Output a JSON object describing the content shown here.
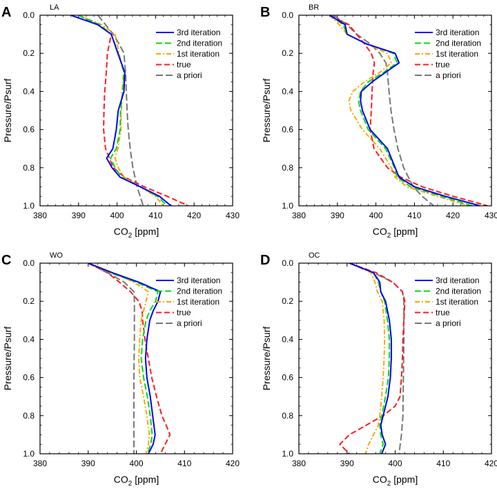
{
  "figure": {
    "background": "#ffffff"
  },
  "series_styles": [
    {
      "key": "iter3",
      "name": "3rd iteration",
      "color": "#0000ff",
      "dash": "",
      "width": 2
    },
    {
      "key": "iter2",
      "name": "2nd iteration",
      "color": "#00dd00",
      "dash": "9 4",
      "width": 2
    },
    {
      "key": "iter1",
      "name": "1st iteration",
      "color": "#ffa500",
      "dash": "7 3 2 3",
      "width": 2
    },
    {
      "key": "true",
      "name": "true",
      "color": "#ff1a1a",
      "dash": "8 4",
      "width": 2
    },
    {
      "key": "apriori",
      "name": "a priori",
      "color": "#777777",
      "dash": "10 4",
      "width": 2
    }
  ],
  "chart_data": [
    {
      "type": "line",
      "panel": "A",
      "title": "LA",
      "xlabel": "CO2 [ppm]",
      "ylabel": "Pressure/Psurf",
      "xlim": [
        380,
        430
      ],
      "ylim": [
        0.0,
        1.0
      ],
      "xticks": [
        "380",
        "390",
        "400",
        "410",
        "420",
        "430"
      ],
      "yticks": [
        "0.0",
        "0.2",
        "0.4",
        "0.6",
        "0.8",
        "1.0"
      ],
      "legend": "top-right",
      "series": [
        {
          "key": "iter3",
          "name": "3rd iteration",
          "y": [
            0.0,
            0.05,
            0.1,
            0.2,
            0.3,
            0.4,
            0.5,
            0.6,
            0.7,
            0.75,
            0.8,
            0.85,
            0.9,
            0.95,
            1.0
          ],
          "x": [
            388,
            395,
            398.5,
            400.2,
            402,
            401.8,
            400.3,
            399.8,
            398.9,
            397.3,
            398.7,
            400.8,
            406,
            411,
            414
          ]
        },
        {
          "key": "iter2",
          "name": "2nd iteration",
          "y": [
            0.0,
            0.05,
            0.1,
            0.2,
            0.3,
            0.4,
            0.5,
            0.6,
            0.7,
            0.75,
            0.8,
            0.85,
            0.9,
            0.95,
            1.0
          ],
          "x": [
            390,
            395.5,
            398.5,
            400.3,
            401.8,
            401.5,
            400.9,
            400.8,
            399.8,
            398.3,
            399.5,
            401.2,
            406,
            410.5,
            413
          ]
        },
        {
          "key": "iter1",
          "name": "1st iteration",
          "y": [
            0.0,
            0.05,
            0.1,
            0.2,
            0.3,
            0.4,
            0.5,
            0.6,
            0.7,
            0.75,
            0.8,
            0.85,
            0.9,
            0.95,
            1.0
          ],
          "x": [
            390,
            396,
            399.5,
            400.5,
            401.7,
            401.3,
            401.1,
            401,
            400.2,
            399.5,
            400.3,
            401.8,
            406,
            410,
            412
          ]
        },
        {
          "key": "true",
          "name": "true",
          "y": [
            0.0,
            0.05,
            0.1,
            0.2,
            0.3,
            0.4,
            0.5,
            0.6,
            0.7,
            0.8,
            0.85,
            0.9,
            0.95,
            1.0
          ],
          "x": [
            390,
            395,
            398.5,
            397.5,
            397.2,
            396.8,
            396.6,
            396.5,
            397,
            399,
            402,
            407,
            413,
            418.5
          ]
        },
        {
          "key": "apriori",
          "name": "a priori",
          "y": [
            0.0,
            0.05,
            0.1,
            0.15,
            0.2,
            0.3,
            0.4,
            0.5,
            0.6,
            0.7,
            0.8,
            0.9,
            1.0
          ],
          "x": [
            395,
            397,
            399,
            400.5,
            401.8,
            402.2,
            402.4,
            402.6,
            402.9,
            403.4,
            404.1,
            405.2,
            406.8
          ]
        }
      ]
    },
    {
      "type": "line",
      "panel": "B",
      "title": "BR",
      "xlabel": "CO2 [ppm]",
      "ylabel": "Pressure/Psurf",
      "xlim": [
        380,
        430
      ],
      "ylim": [
        0.0,
        1.0
      ],
      "xticks": [
        "380",
        "390",
        "400",
        "410",
        "420",
        "430"
      ],
      "yticks": [
        "0.0",
        "0.2",
        "0.4",
        "0.6",
        "0.8",
        "1.0"
      ],
      "legend": "top-right",
      "series": [
        {
          "key": "iter3",
          "name": "3rd iteration",
          "y": [
            0.0,
            0.05,
            0.1,
            0.15,
            0.2,
            0.25,
            0.3,
            0.35,
            0.4,
            0.45,
            0.5,
            0.6,
            0.7,
            0.8,
            0.85,
            0.9,
            0.95,
            1.0
          ],
          "x": [
            388,
            392,
            392.5,
            397.5,
            405,
            406,
            402.5,
            399,
            396.2,
            396,
            396.5,
            398.5,
            403,
            405,
            406,
            410,
            418,
            427
          ]
        },
        {
          "key": "iter2",
          "name": "2nd iteration",
          "y": [
            0.0,
            0.05,
            0.1,
            0.15,
            0.2,
            0.25,
            0.3,
            0.35,
            0.4,
            0.45,
            0.5,
            0.6,
            0.7,
            0.8,
            0.85,
            0.9,
            0.95,
            1.0
          ],
          "x": [
            388,
            391.5,
            392.5,
            397.5,
            404.5,
            405.5,
            402,
            398,
            396,
            395.5,
            396,
            398,
            402.5,
            404.8,
            405.5,
            409,
            417,
            425
          ]
        },
        {
          "key": "iter1",
          "name": "1st iteration",
          "y": [
            0.0,
            0.05,
            0.1,
            0.15,
            0.2,
            0.25,
            0.3,
            0.35,
            0.4,
            0.45,
            0.5,
            0.6,
            0.7,
            0.8,
            0.85,
            0.9,
            0.95,
            1.0
          ],
          "x": [
            388,
            390.5,
            392.5,
            397.5,
            403,
            404,
            401,
            397,
            394,
            393,
            393.5,
            396.5,
            401,
            404,
            405,
            408,
            416,
            424
          ]
        },
        {
          "key": "true",
          "name": "true",
          "y": [
            0.0,
            0.05,
            0.1,
            0.15,
            0.2,
            0.25,
            0.3,
            0.4,
            0.5,
            0.6,
            0.7,
            0.8,
            0.85,
            0.9,
            0.95,
            1.0
          ],
          "x": [
            388,
            393,
            395,
            397,
            398.8,
            399.6,
            399.3,
            399,
            398.8,
            398.5,
            399.5,
            403,
            406.5,
            412,
            420,
            429
          ]
        },
        {
          "key": "apriori",
          "name": "a priori",
          "y": [
            0.0,
            0.05,
            0.1,
            0.15,
            0.2,
            0.25,
            0.3,
            0.4,
            0.5,
            0.6,
            0.7,
            0.8,
            0.9,
            0.95,
            1.0
          ],
          "x": [
            389,
            392.5,
            395,
            398.5,
            401,
            402.6,
            403,
            403.4,
            403.9,
            404.7,
            405.7,
            407.2,
            409.7,
            412,
            415
          ]
        }
      ]
    },
    {
      "type": "line",
      "panel": "C",
      "title": "WO",
      "xlabel": "CO2 [ppm]",
      "ylabel": "Pressure/Psurf",
      "xlim": [
        380,
        420
      ],
      "ylim": [
        0.0,
        1.0
      ],
      "xticks": [
        "380",
        "390",
        "400",
        "410",
        "420"
      ],
      "yticks": [
        "0.0",
        "0.2",
        "0.4",
        "0.6",
        "0.8",
        "1.0"
      ],
      "legend": "top-right",
      "series": [
        {
          "key": "iter3",
          "name": "3rd iteration",
          "y": [
            0.0,
            0.05,
            0.1,
            0.15,
            0.2,
            0.25,
            0.3,
            0.4,
            0.5,
            0.6,
            0.7,
            0.8,
            0.9,
            0.95,
            1.0
          ],
          "x": [
            390,
            395,
            400.5,
            405,
            404.5,
            403.5,
            402.8,
            402.2,
            401.9,
            402.2,
            402.9,
            403.4,
            403.9,
            403.5,
            402.5
          ]
        },
        {
          "key": "iter2",
          "name": "2nd iteration",
          "y": [
            0.0,
            0.05,
            0.1,
            0.15,
            0.2,
            0.25,
            0.3,
            0.4,
            0.5,
            0.6,
            0.7,
            0.8,
            0.9,
            0.95,
            1.0
          ],
          "x": [
            390,
            394.5,
            400,
            404.5,
            404,
            402.8,
            402,
            401.3,
            401,
            401.5,
            402.3,
            402.9,
            403.3,
            403,
            402.3
          ]
        },
        {
          "key": "iter1",
          "name": "1st iteration",
          "y": [
            0.0,
            0.05,
            0.1,
            0.15,
            0.2,
            0.25,
            0.3,
            0.4,
            0.5,
            0.6,
            0.7,
            0.8,
            0.9,
            0.95,
            1.0
          ],
          "x": [
            390,
            395,
            399.5,
            402.5,
            402,
            401.5,
            401,
            400.7,
            400.5,
            400.7,
            401.5,
            402.2,
            402.7,
            402.5,
            402
          ]
        },
        {
          "key": "true",
          "name": "true",
          "y": [
            0.0,
            0.05,
            0.1,
            0.15,
            0.2,
            0.25,
            0.3,
            0.4,
            0.5,
            0.6,
            0.7,
            0.8,
            0.85,
            0.9,
            0.95,
            1.0
          ],
          "x": [
            390,
            394,
            396.5,
            398.8,
            400.5,
            401.2,
            401.3,
            401.8,
            402.5,
            403.2,
            404.2,
            405.3,
            406.2,
            407,
            406,
            405
          ]
        },
        {
          "key": "apriori",
          "name": "a priori",
          "y": [
            0.0,
            0.05,
            0.1,
            0.15,
            0.2,
            0.4,
            0.6,
            0.8,
            1.0
          ],
          "x": [
            390,
            394,
            397.5,
            399.5,
            399.6,
            399.6,
            399.5,
            399.5,
            399.5
          ]
        }
      ]
    },
    {
      "type": "line",
      "panel": "D",
      "title": "OC",
      "xlabel": "CO2 [ppm]",
      "ylabel": "Pressure/Psurf",
      "xlim": [
        380,
        420
      ],
      "ylim": [
        0.0,
        1.0
      ],
      "xticks": [
        "380",
        "390",
        "400",
        "410",
        "420"
      ],
      "yticks": [
        "0.0",
        "0.2",
        "0.4",
        "0.6",
        "0.8",
        "1.0"
      ],
      "legend": "top-right",
      "series": [
        {
          "key": "iter3",
          "name": "3rd iteration",
          "y": [
            0.0,
            0.05,
            0.1,
            0.15,
            0.2,
            0.3,
            0.4,
            0.5,
            0.6,
            0.7,
            0.8,
            0.85,
            0.9,
            0.95,
            1.0
          ],
          "x": [
            390.5,
            395.5,
            396.8,
            397,
            398,
            398.8,
            399.2,
            399.2,
            399,
            398.5,
            397.5,
            397,
            397.3,
            398,
            397.2
          ]
        },
        {
          "key": "iter2",
          "name": "2nd iteration",
          "y": [
            0.0,
            0.05,
            0.1,
            0.15,
            0.2,
            0.3,
            0.4,
            0.5,
            0.6,
            0.7,
            0.8,
            0.85,
            0.9,
            0.95,
            1.0
          ],
          "x": [
            390.5,
            395.5,
            396.5,
            397,
            397.8,
            398.4,
            398.8,
            398.8,
            398.6,
            398,
            397.2,
            396.8,
            397,
            397.5,
            396.8
          ]
        },
        {
          "key": "iter1",
          "name": "1st iteration",
          "y": [
            0.0,
            0.05,
            0.1,
            0.15,
            0.2,
            0.3,
            0.4,
            0.5,
            0.6,
            0.7,
            0.8,
            0.85,
            0.9,
            0.95,
            1.0
          ],
          "x": [
            390.5,
            395,
            395.8,
            396.3,
            397.3,
            397.7,
            397.8,
            397.7,
            397.5,
            397.2,
            396.8,
            396.5,
            395.5,
            394.5,
            393.8
          ]
        },
        {
          "key": "true",
          "name": "true",
          "y": [
            0.0,
            0.05,
            0.1,
            0.15,
            0.2,
            0.3,
            0.4,
            0.5,
            0.6,
            0.7,
            0.75,
            0.8,
            0.85,
            0.9,
            0.95,
            1.0
          ],
          "x": [
            390.5,
            396,
            399.5,
            401.5,
            402,
            401.8,
            401.6,
            401.5,
            401.3,
            401,
            400,
            397.5,
            394,
            390.5,
            388.5,
            390.5
          ]
        },
        {
          "key": "apriori",
          "name": "a priori",
          "y": [
            0.0,
            0.05,
            0.1,
            0.15,
            0.2,
            0.4,
            0.6,
            0.8,
            0.9,
            1.0
          ],
          "x": [
            390.5,
            395.5,
            399.5,
            401.5,
            401.8,
            401.8,
            401.7,
            401.6,
            401.3,
            400.8
          ]
        }
      ]
    }
  ]
}
